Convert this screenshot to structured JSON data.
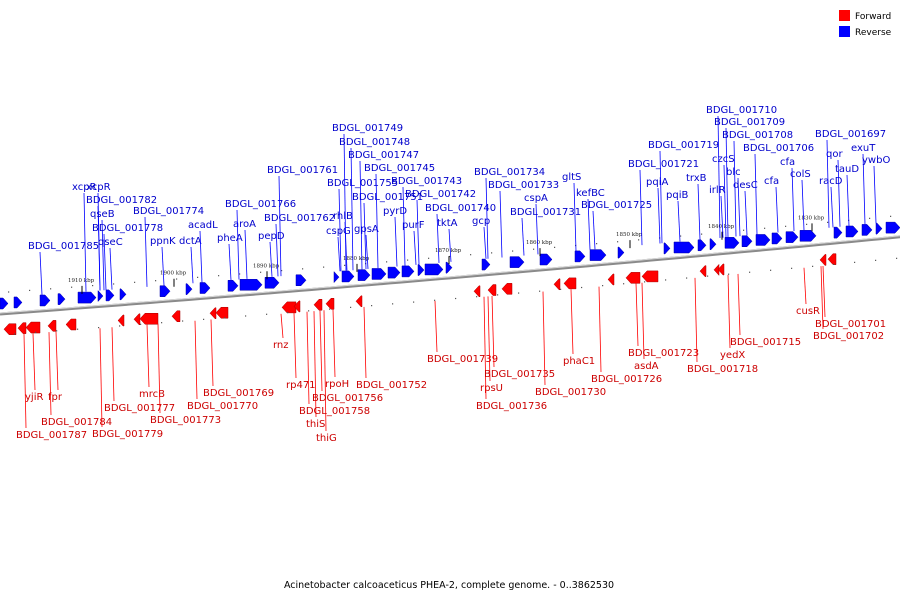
{
  "caption": "Acinetobacter calcoaceticus PHEA-2, complete genome. - 0..3862530",
  "legend": [
    {
      "label": "Forward",
      "color": "#ff0000"
    },
    {
      "label": "Reverse",
      "color": "#0000ff"
    }
  ],
  "ticks": [
    "1910 kbp",
    "1900 kbp",
    "1890 kbp",
    "1880 kbp",
    "1870 kbp",
    "1860 kbp",
    "1850 kbp",
    "1840 kbp",
    "1830 kbp"
  ],
  "reverse_labels": [
    "BDGL_001785",
    "BDGL_001782",
    "xcpR",
    "xcpR",
    "qseB",
    "BDGL_001778",
    "qseC",
    "ppnK",
    "BDGL_001774",
    "dctA",
    "acadL",
    "pheA",
    "aroA",
    "BDGL_001766",
    "pepD",
    "BDGL_001762",
    "BDGL_001761",
    "cspG",
    "rhlB",
    "BDGL_001755",
    "gpsA",
    "BDGL_001751",
    "BDGL_001749",
    "BDGL_001748",
    "BDGL_001747",
    "pyrD",
    "BDGL_001745",
    "purF",
    "BDGL_001743",
    "tktA",
    "BDGL_001742",
    "BDGL_001740",
    "gcp",
    "BDGL_001734",
    "BDGL_001733",
    "cspA",
    "BDGL_001731",
    "gltS",
    "kefBC",
    "BDGL_001725",
    "pqiA",
    "BDGL_001721",
    "pqiB",
    "BDGL_001719",
    "trxB",
    "irlR",
    "czcS",
    "blc",
    "desC",
    "BDGL_001710",
    "BDGL_001709",
    "BDGL_001708",
    "BDGL_001706",
    "cfa",
    "cfa",
    "colS",
    "racD",
    "qor",
    "tauD",
    "BDGL_001697",
    "exuT",
    "ywbO"
  ],
  "forward_labels": [
    "yjiR",
    "BDGL_001787",
    "fpr",
    "BDGL_001784",
    "BDGL_001779",
    "BDGL_001777",
    "mrcB",
    "BDGL_001773",
    "BDGL_001770",
    "BDGL_001769",
    "rnz",
    "rp471",
    "thiS",
    "thiG",
    "BDGL_001758",
    "rpoH",
    "BDGL_001756",
    "BDGL_001752",
    "BDGL_001739",
    "rpsU",
    "BDGL_001736",
    "BDGL_001735",
    "BDGL_001730",
    "phaC1",
    "BDGL_001726",
    "asdA",
    "BDGL_001723",
    "BDGL_001718",
    "yedX",
    "BDGL_001715",
    "cusR",
    "BDGL_001701",
    "BDGL_001702"
  ]
}
